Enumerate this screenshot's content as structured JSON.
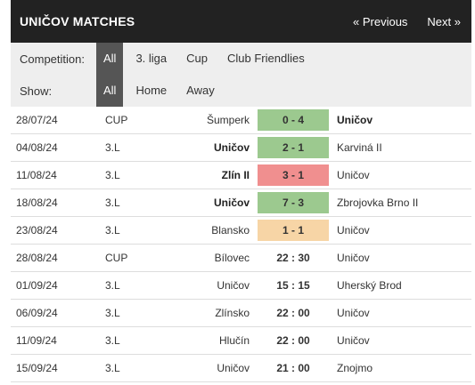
{
  "header": {
    "title": "UNIČOV MATCHES",
    "prev_label": "« Previous",
    "next_label": "Next »"
  },
  "filters": {
    "competition_label": "Competition:",
    "competition_options": [
      "All",
      "3. liga",
      "Cup",
      "Club Friendlies"
    ],
    "show_label": "Show:",
    "show_options": [
      "All",
      "Home",
      "Away"
    ]
  },
  "colors": {
    "win": "#9cc98f",
    "loss": "#f08f8f",
    "draw": "#f7d5a6",
    "header_bg": "#222222",
    "active_filter": "#555555"
  },
  "matches": [
    {
      "date": "28/07/24",
      "comp": "CUP",
      "home": "Šumperk",
      "score": "0 - 4",
      "away": "Uničov",
      "result": "win",
      "bold": "away"
    },
    {
      "date": "04/08/24",
      "comp": "3.L",
      "home": "Uničov",
      "score": "2 - 1",
      "away": "Karviná II",
      "result": "win",
      "bold": "home"
    },
    {
      "date": "11/08/24",
      "comp": "3.L",
      "home": "Zlín II",
      "score": "3 - 1",
      "away": "Uničov",
      "result": "loss",
      "bold": "home"
    },
    {
      "date": "18/08/24",
      "comp": "3.L",
      "home": "Uničov",
      "score": "7 - 3",
      "away": "Zbrojovka Brno II",
      "result": "win",
      "bold": "home"
    },
    {
      "date": "23/08/24",
      "comp": "3.L",
      "home": "Blansko",
      "score": "1 - 1",
      "away": "Uničov",
      "result": "draw",
      "bold": ""
    },
    {
      "date": "28/08/24",
      "comp": "CUP",
      "home": "Bílovec",
      "score": "22 : 30",
      "away": "Uničov",
      "result": "",
      "bold": ""
    },
    {
      "date": "01/09/24",
      "comp": "3.L",
      "home": "Uničov",
      "score": "15 : 15",
      "away": "Uherský Brod",
      "result": "",
      "bold": ""
    },
    {
      "date": "06/09/24",
      "comp": "3.L",
      "home": "Zlínsko",
      "score": "22 : 00",
      "away": "Uničov",
      "result": "",
      "bold": ""
    },
    {
      "date": "11/09/24",
      "comp": "3.L",
      "home": "Hlučín",
      "score": "22 : 00",
      "away": "Uničov",
      "result": "",
      "bold": ""
    },
    {
      "date": "15/09/24",
      "comp": "3.L",
      "home": "Uničov",
      "score": "21 : 00",
      "away": "Znojmo",
      "result": "",
      "bold": ""
    }
  ]
}
